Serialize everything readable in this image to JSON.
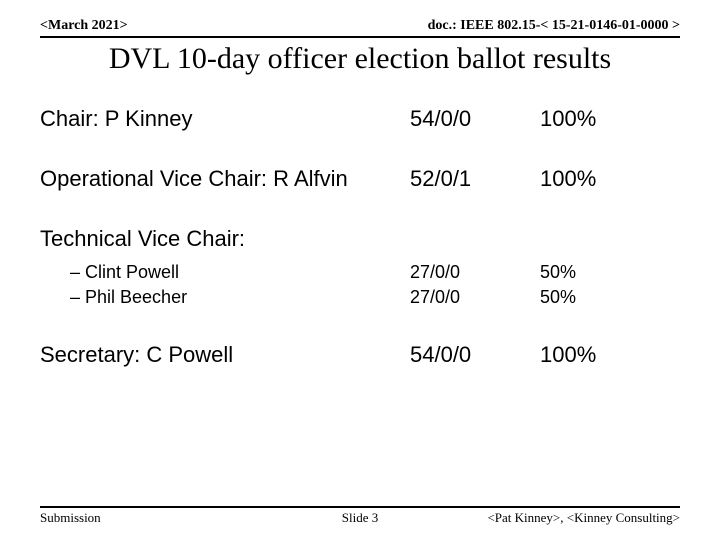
{
  "header": {
    "left": "<March 2021>",
    "right": "doc.: IEEE 802.15-< 15-21-0146-01-0000 >"
  },
  "title": "DVL 10-day officer election ballot results",
  "rows": {
    "chair": {
      "label": "Chair: P Kinney",
      "votes": "54/0/0",
      "pct": "100%"
    },
    "opvice": {
      "label": "Operational Vice Chair: R Alfvin",
      "votes": "52/0/1",
      "pct": "100%"
    },
    "tvc_label": "Technical Vice Chair:",
    "tvc1": {
      "label": "– Clint Powell",
      "votes": "27/0/0",
      "pct": "50%"
    },
    "tvc2": {
      "label": "– Phil Beecher",
      "votes": "27/0/0",
      "pct": "50%"
    },
    "secretary": {
      "label": "Secretary: C Powell",
      "votes": "54/0/0",
      "pct": "100%"
    }
  },
  "footer": {
    "left": "Submission",
    "mid": "Slide 3",
    "right": "<Pat Kinney>, <Kinney Consulting>"
  }
}
